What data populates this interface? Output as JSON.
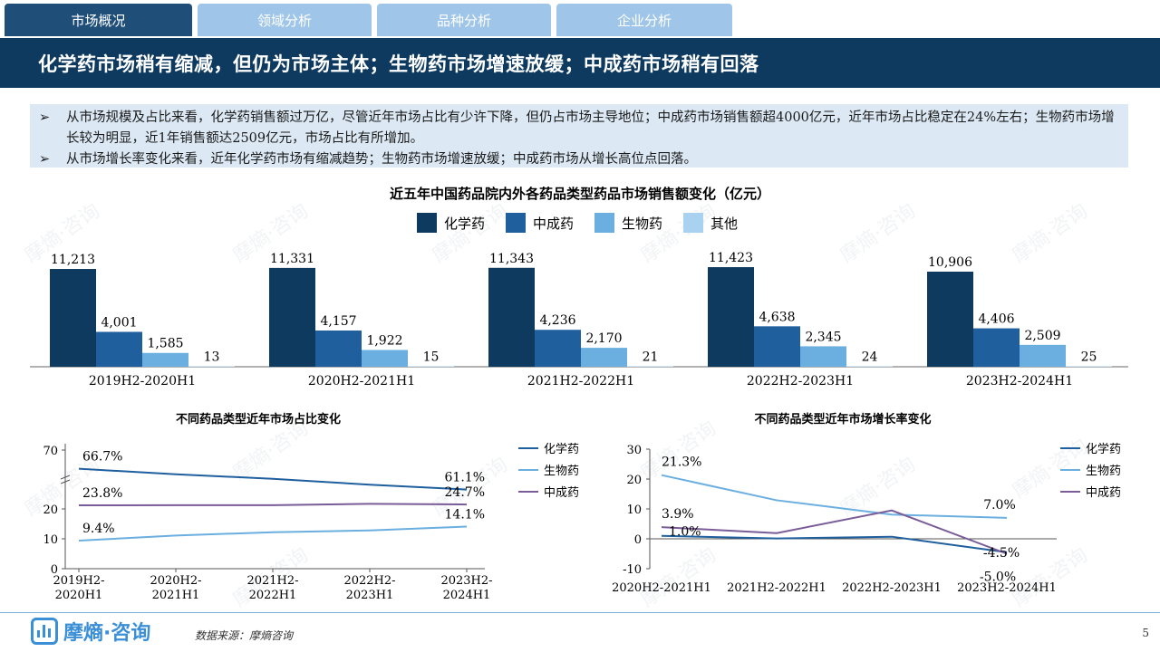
{
  "tabs": [
    {
      "label": "市场概况",
      "active": true
    },
    {
      "label": "领域分析",
      "active": false
    },
    {
      "label": "品种分析",
      "active": false
    },
    {
      "label": "企业分析",
      "active": false
    }
  ],
  "headline": "化学药市场稍有缩减，但仍为市场主体；生物药市场增速放缓；中成药市场稍有回落",
  "bullets": [
    {
      "marker": "➢",
      "text": "从市场规模及占比来看，化学药销售额过万亿，尽管近年市场占比有少许下降，但仍占市场主导地位；中成药市场销售额超4000亿元，近年市场占比稳定在24%左右；生物药市场增长较为明显，近1年销售额达2509亿元，市场占比有所增加。"
    },
    {
      "marker": "➢",
      "text": "从市场增长率变化来看，近年化学药市场有缩减趋势；生物药市场增速放缓；中成药市场从增长高位点回落。"
    }
  ],
  "watermark": "摩熵·咨询",
  "colors": {
    "chem": "#0f3a5f",
    "tcm": "#1f5f9e",
    "bio": "#6aafe0",
    "other": "#a9d1f0",
    "purple": "#7a5c99"
  },
  "chart_data": [
    {
      "type": "bar",
      "title": "近五年中国药品院内外各药品类型药品市场销售额变化（亿元）",
      "categories": [
        "2019H2-2020H1",
        "2020H2-2021H1",
        "2021H2-2022H1",
        "2022H2-2023H1",
        "2023H2-2024H1"
      ],
      "series": [
        {
          "name": "化学药",
          "values": [
            11213,
            11331,
            11343,
            11423,
            10906
          ],
          "labels": [
            "11,213",
            "11,331",
            "11,343",
            "11,423",
            "10,906"
          ],
          "color": "#0f3a5f"
        },
        {
          "name": "中成药",
          "values": [
            4001,
            4157,
            4236,
            4638,
            4406
          ],
          "labels": [
            "4,001",
            "4,157",
            "4,236",
            "4,638",
            "4,406"
          ],
          "color": "#1f5f9e"
        },
        {
          "name": "生物药",
          "values": [
            1585,
            1922,
            2170,
            2345,
            2509
          ],
          "labels": [
            "1,585",
            "1,922",
            "2,170",
            "2,345",
            "2,509"
          ],
          "color": "#6aafe0"
        },
        {
          "name": "其他",
          "values": [
            13,
            15,
            21,
            24,
            25
          ],
          "labels": [
            "13",
            "15",
            "21",
            "24",
            "25"
          ],
          "color": "#a9d1f0"
        }
      ],
      "legend": "top-center"
    },
    {
      "type": "line",
      "title": "不同药品类型近年市场占比变化",
      "categories": [
        [
          "2019H2-",
          "2020H1"
        ],
        [
          "2020H2-",
          "2021H1"
        ],
        [
          "2021H2-",
          "2022H1"
        ],
        [
          "2022H2-",
          "2023H1"
        ],
        [
          "2023H2-",
          "2024H1"
        ]
      ],
      "y_ticks": [
        "0",
        "10",
        "20",
        "70"
      ],
      "axis_break": true,
      "series": [
        {
          "name": "化学药",
          "values": [
            66.7,
            65.2,
            64.0,
            62.4,
            61.1
          ],
          "color": "#1f5f9e"
        },
        {
          "name": "生物药",
          "values": [
            9.4,
            11.1,
            12.2,
            12.8,
            14.1
          ],
          "color": "#6aafe0"
        },
        {
          "name": "中成药",
          "values": [
            23.8,
            23.9,
            23.9,
            25.3,
            24.7
          ],
          "color": "#7a5c99"
        }
      ],
      "annotations": [
        {
          "text": "66.7%",
          "series": 0,
          "point": 0
        },
        {
          "text": "61.1%",
          "series": 0,
          "point": 4
        },
        {
          "text": "23.8%",
          "series": 2,
          "point": 0
        },
        {
          "text": "24.7%",
          "series": 2,
          "point": 4
        },
        {
          "text": "9.4%",
          "series": 1,
          "point": 0
        },
        {
          "text": "14.1%",
          "series": 1,
          "point": 4
        }
      ],
      "legend": "right"
    },
    {
      "type": "line",
      "title": "不同药品类型近年市场增长率变化",
      "categories": [
        "2020H2-2021H1",
        "2021H2-2022H1",
        "2022H2-2023H1",
        "2023H2-2024H1"
      ],
      "ylim": [
        -10,
        30
      ],
      "y_ticks": [
        "-10",
        "0",
        "10",
        "20",
        "30"
      ],
      "series": [
        {
          "name": "化学药",
          "values": [
            1.0,
            0.1,
            0.7,
            -4.5
          ],
          "color": "#1f5f9e"
        },
        {
          "name": "生物药",
          "values": [
            21.3,
            12.9,
            8.1,
            7.0
          ],
          "color": "#6aafe0"
        },
        {
          "name": "中成药",
          "values": [
            3.9,
            1.9,
            9.5,
            -5.0
          ],
          "color": "#7a5c99"
        }
      ],
      "annotations": [
        {
          "text": "21.3%",
          "series": 1,
          "point": 0
        },
        {
          "text": "7.0%",
          "series": 1,
          "point": 3
        },
        {
          "text": "3.9%",
          "series": 2,
          "point": 0
        },
        {
          "text": "-5.0%",
          "series": 2,
          "point": 3
        },
        {
          "text": "1.0%",
          "series": 0,
          "point": 0
        },
        {
          "text": "-4.5%",
          "series": 0,
          "point": 3
        }
      ],
      "legend": "right"
    }
  ],
  "footer": {
    "logo_text": "摩熵·咨询",
    "source": "数据来源：摩熵咨询",
    "page_number": "5"
  }
}
